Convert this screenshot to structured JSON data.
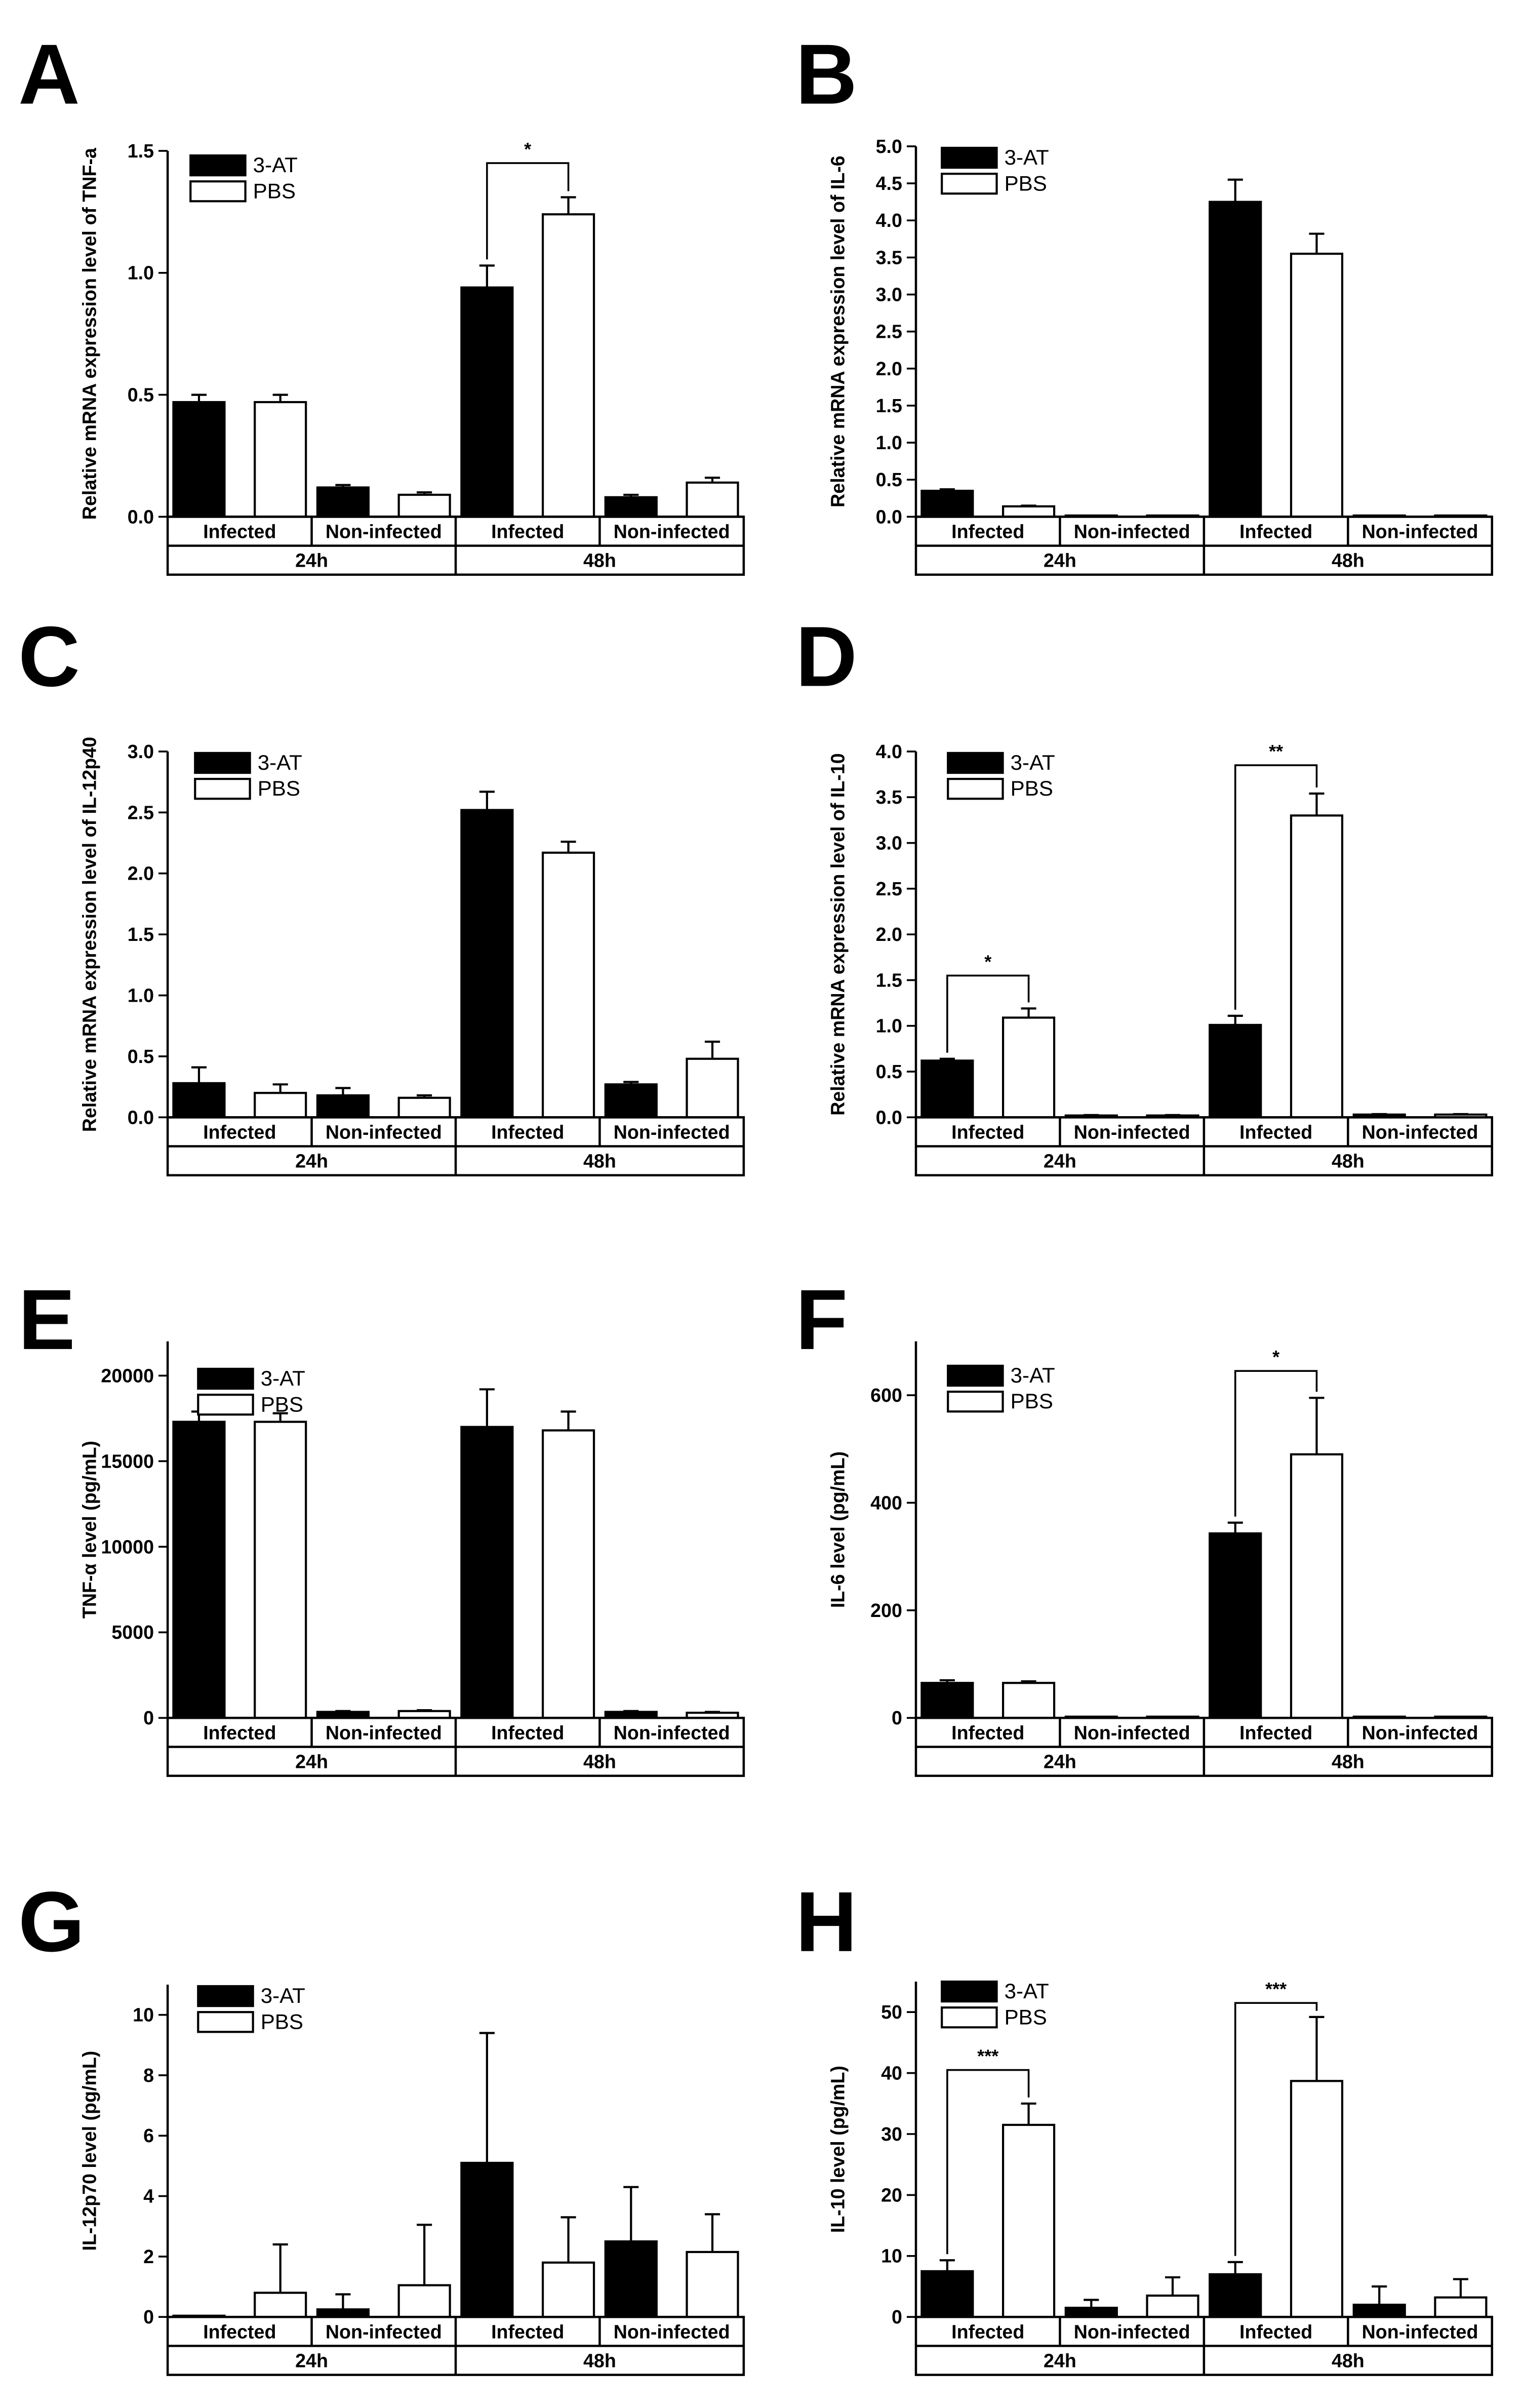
{
  "figure": {
    "groups": [
      "Infected",
      "Non-infected",
      "Infected",
      "Non-infected"
    ],
    "timepoints": [
      "24h",
      "48h"
    ],
    "series_names": [
      "3-AT",
      "PBS"
    ],
    "colors": {
      "3-AT": "#000000",
      "PBS": "#ffffff"
    }
  },
  "chart_data": [
    {
      "panel": "A",
      "type": "bar",
      "ylabel": "Relative mRNA expression level of TNF-a",
      "ylim": [
        0,
        1.5
      ],
      "yticks": [
        0.0,
        0.5,
        1.0,
        1.5
      ],
      "tick_decimals": 1,
      "categories": [
        "Infected 24h",
        "Non-infected 24h",
        "Infected 48h",
        "Non-infected 48h"
      ],
      "series": [
        {
          "name": "3-AT",
          "values": [
            0.47,
            0.12,
            0.94,
            0.08
          ],
          "errors": [
            0.03,
            0.01,
            0.09,
            0.01
          ]
        },
        {
          "name": "PBS",
          "values": [
            0.47,
            0.09,
            1.24,
            0.14
          ],
          "errors": [
            0.03,
            0.01,
            0.07,
            0.02
          ]
        }
      ],
      "significance": [
        {
          "group": 2,
          "label": "*",
          "top": 1.45
        }
      ]
    },
    {
      "panel": "B",
      "type": "bar",
      "ylabel": "Relative mRNA expression level of IL-6",
      "ylim": [
        0,
        5.0
      ],
      "yticks": [
        0.0,
        0.5,
        1.0,
        1.5,
        2.0,
        2.5,
        3.0,
        3.5,
        4.0,
        4.5,
        5.0
      ],
      "tick_decimals": 1,
      "categories": [
        "Infected 24h",
        "Non-infected 24h",
        "Infected 48h",
        "Non-infected 48h"
      ],
      "series": [
        {
          "name": "3-AT",
          "values": [
            0.35,
            0.0,
            4.25,
            0.0
          ],
          "errors": [
            0.02,
            0,
            0.3,
            0
          ]
        },
        {
          "name": "PBS",
          "values": [
            0.14,
            0.0,
            3.55,
            0.0
          ],
          "errors": [
            0.01,
            0,
            0.27,
            0
          ]
        }
      ],
      "significance": []
    },
    {
      "panel": "C",
      "type": "bar",
      "ylabel": "Relative mRNA expression level of IL-12p40",
      "ylim": [
        0,
        3.0
      ],
      "yticks": [
        0.0,
        0.5,
        1.0,
        1.5,
        2.0,
        2.5,
        3.0
      ],
      "tick_decimals": 1,
      "categories": [
        "Infected 24h",
        "Non-infected 24h",
        "Infected 48h",
        "Non-infected 48h"
      ],
      "series": [
        {
          "name": "3-AT",
          "values": [
            0.28,
            0.18,
            2.52,
            0.27
          ],
          "errors": [
            0.13,
            0.06,
            0.15,
            0.02
          ]
        },
        {
          "name": "PBS",
          "values": [
            0.2,
            0.16,
            2.17,
            0.48
          ],
          "errors": [
            0.07,
            0.02,
            0.09,
            0.14
          ]
        }
      ],
      "significance": []
    },
    {
      "panel": "D",
      "type": "bar",
      "ylabel": "Relative mRNA expression level of IL-10",
      "ylim": [
        0,
        4.0
      ],
      "yticks": [
        0.0,
        0.5,
        1.0,
        1.5,
        2.0,
        2.5,
        3.0,
        3.5,
        4.0
      ],
      "tick_decimals": 1,
      "categories": [
        "Infected 24h",
        "Non-infected 24h",
        "Infected 48h",
        "Non-infected 48h"
      ],
      "series": [
        {
          "name": "3-AT",
          "values": [
            0.62,
            0.02,
            1.01,
            0.03
          ],
          "errors": [
            0.02,
            0.005,
            0.1,
            0.005
          ]
        },
        {
          "name": "PBS",
          "values": [
            1.09,
            0.02,
            3.3,
            0.03
          ],
          "errors": [
            0.1,
            0.005,
            0.24,
            0.005
          ]
        }
      ],
      "significance": [
        {
          "group": 0,
          "label": "*",
          "top": 1.55
        },
        {
          "group": 2,
          "label": "**",
          "top": 3.85
        }
      ]
    },
    {
      "panel": "E",
      "type": "bar",
      "ylabel": "TNF-α level (pg/mL)",
      "ylim": [
        0,
        22000
      ],
      "yticks": [
        0,
        5000,
        10000,
        15000,
        20000
      ],
      "tick_decimals": 0,
      "categories": [
        "Infected 24h",
        "Non-infected 24h",
        "Infected 48h",
        "Non-infected 48h"
      ],
      "series": [
        {
          "name": "3-AT",
          "values": [
            17300,
            350,
            17000,
            350
          ],
          "errors": [
            600,
            50,
            2200,
            50
          ]
        },
        {
          "name": "PBS",
          "values": [
            17300,
            400,
            16800,
            300
          ],
          "errors": [
            500,
            50,
            1100,
            50
          ]
        }
      ],
      "significance": []
    },
    {
      "panel": "F",
      "type": "bar",
      "ylabel": "IL-6 level (pg/mL)",
      "ylim": [
        0,
        700
      ],
      "yticks": [
        0,
        200,
        400,
        600
      ],
      "tick_decimals": 0,
      "categories": [
        "Infected 24h",
        "Non-infected 24h",
        "Infected 48h",
        "Non-infected 48h"
      ],
      "series": [
        {
          "name": "3-AT",
          "values": [
            65,
            0,
            343,
            0
          ],
          "errors": [
            5,
            0,
            20,
            0
          ]
        },
        {
          "name": "PBS",
          "values": [
            65,
            0,
            490,
            0
          ],
          "errors": [
            3,
            0,
            105,
            0
          ]
        }
      ],
      "significance": [
        {
          "group": 2,
          "label": "*",
          "top": 645
        }
      ]
    },
    {
      "panel": "G",
      "type": "bar",
      "ylabel": "IL-12p70 level (pg/mL)",
      "ylim": [
        0,
        11
      ],
      "yticks": [
        0,
        2,
        4,
        6,
        8,
        10
      ],
      "tick_decimals": 0,
      "categories": [
        "Infected 24h",
        "Non-infected 24h",
        "Infected 48h",
        "Non-infected 48h"
      ],
      "series": [
        {
          "name": "3-AT",
          "values": [
            0.0,
            0.25,
            5.1,
            2.5
          ],
          "errors": [
            0,
            0.5,
            4.3,
            1.8
          ]
        },
        {
          "name": "PBS",
          "values": [
            0.8,
            1.05,
            1.8,
            2.15
          ],
          "errors": [
            1.6,
            2.0,
            1.5,
            1.25
          ]
        }
      ],
      "significance": []
    },
    {
      "panel": "H",
      "type": "bar",
      "ylabel": "IL-10 level (pg/mL)",
      "ylim": [
        0,
        55
      ],
      "yticks": [
        0,
        10,
        20,
        30,
        40,
        50
      ],
      "tick_decimals": 0,
      "categories": [
        "Infected 24h",
        "Non-infected 24h",
        "Infected 48h",
        "Non-infected 48h"
      ],
      "series": [
        {
          "name": "3-AT",
          "values": [
            7.5,
            1.5,
            7.0,
            2.0
          ],
          "errors": [
            1.8,
            1.3,
            2.0,
            3.0
          ]
        },
        {
          "name": "PBS",
          "values": [
            31.5,
            3.5,
            38.7,
            3.2
          ],
          "errors": [
            3.5,
            3.0,
            10.5,
            3.0
          ]
        }
      ],
      "significance": [
        {
          "group": 0,
          "label": "***",
          "top": 40.5
        },
        {
          "group": 2,
          "label": "***",
          "top": 51.5
        }
      ]
    }
  ]
}
